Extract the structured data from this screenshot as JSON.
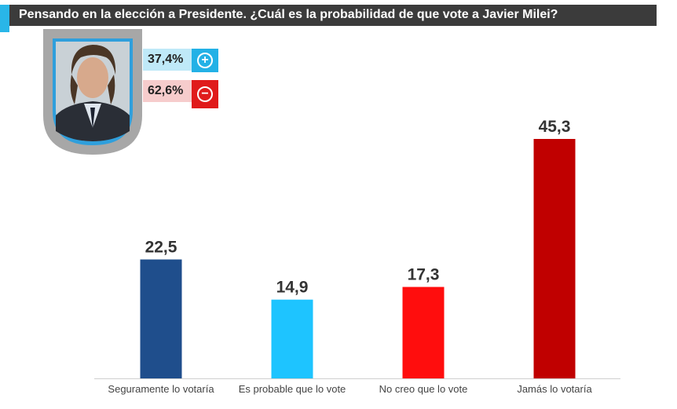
{
  "title": "Pensando en la elección a Presidente. ¿Cuál es la probabilidad de que vote a Javier Milei?",
  "summary": {
    "positive": {
      "value": "37,4%",
      "icon": "plus-circle-icon",
      "color": "#23b1e6"
    },
    "negative": {
      "value": "62,6%",
      "icon": "minus-circle-icon",
      "color": "#e01b1b"
    }
  },
  "colors": {
    "title_bar": "#3b3b3b",
    "accent": "#29b6e8"
  },
  "chart_data": {
    "type": "bar",
    "categories": [
      "Seguramente lo votaría",
      "Es probable que lo vote",
      "No creo que lo vote",
      "Jamás lo votaría"
    ],
    "values": [
      22.5,
      14.9,
      17.3,
      45.3
    ],
    "value_labels": [
      "22,5",
      "14,9",
      "17,3",
      "45,3"
    ],
    "colors": [
      "#1f4e8c",
      "#1ec4ff",
      "#ff0d0d",
      "#c00000"
    ],
    "xlabel": "",
    "ylabel": "",
    "ylim": [
      0,
      45.3
    ],
    "grid": false
  }
}
